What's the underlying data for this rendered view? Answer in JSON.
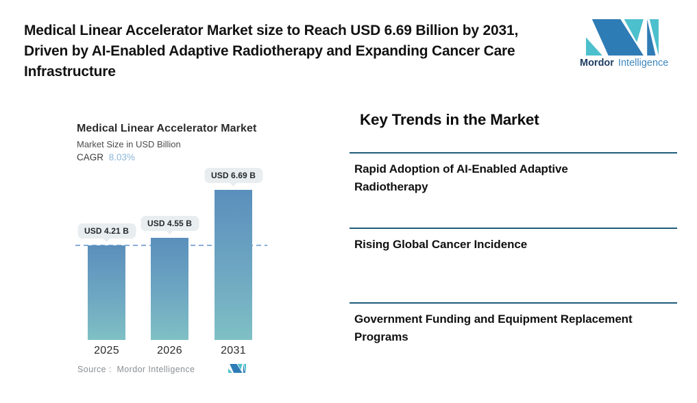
{
  "header": {
    "title": "Medical Linear Accelerator Market size to Reach USD 6.69 Billion by 2031, Driven by AI-Enabled Adaptive Radiotherapy and Expanding Cancer Care Infrastructure",
    "logo": {
      "brand_bold": "Mordor",
      "brand_light": "Intelligence"
    }
  },
  "chart": {
    "title": "Medical Linear Accelerator Market",
    "subtitle": "Market Size in USD Billion",
    "cagr_label": "CAGR",
    "cagr_value": "8.03%",
    "source_label": "Source :  Mordor Intelligence"
  },
  "chart_data": {
    "type": "bar",
    "title": "Medical Linear Accelerator Market",
    "subtitle": "Market Size in USD Billion",
    "cagr_percent": 8.03,
    "categories": [
      "2025",
      "2026",
      "2031"
    ],
    "values": [
      4.21,
      4.55,
      6.69
    ],
    "value_labels": [
      "USD 4.21 B",
      "USD 4.55 B",
      "USD 6.69 B"
    ],
    "unit": "USD Billion",
    "ylim": [
      0,
      7.5
    ],
    "grid": false,
    "legend": "none",
    "reference_line": {
      "value": 4.21,
      "style": "dashed"
    },
    "bar_gradient": [
      "#5b8fbc",
      "#7fc0c4"
    ]
  },
  "trends": {
    "heading": "Key Trends in the Market",
    "items": [
      "Rapid Adoption of AI-Enabled Adaptive Radiotherapy",
      "Rising Global Cancer Incidence",
      "Government Funding and Equipment Replacement Programs"
    ]
  },
  "colors": {
    "divider": "#1d5b7a",
    "dashed_line": "#84aed6",
    "cagr_accent": "#8cb6da",
    "pill_bg": "#e8edf0",
    "logo_blue": "#2e7cb5",
    "logo_teal": "#4dc0cd",
    "brand_dark": "#1d3d62",
    "brand_light": "#3e86bd"
  }
}
